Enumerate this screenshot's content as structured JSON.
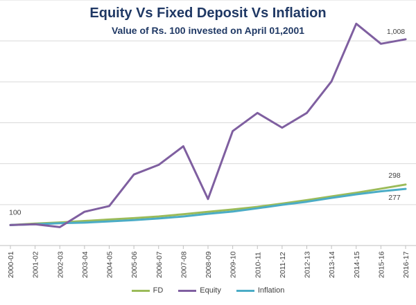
{
  "chart_data": {
    "type": "line",
    "title": "Equity Vs Fixed Deposit Vs Inflation",
    "subtitle": "Value of Rs.  100 invested on April 01,2001",
    "categories": [
      "2000-01",
      "2001-02",
      "2002-03",
      "2003-04",
      "2004-05",
      "2005-06",
      "2006-07",
      "2007-08",
      "2008-09",
      "2009-10",
      "2010-11",
      "2011-12",
      "2012-13",
      "2013-14",
      "2014-15",
      "2015-16",
      "2016-17"
    ],
    "series": [
      {
        "name": "FD",
        "color": "#9bbb59",
        "values": [
          100,
          107,
          113,
          120,
          127,
          134,
          142,
          153,
          165,
          176,
          189,
          205,
          222,
          240,
          258,
          278,
          298
        ]
      },
      {
        "name": "Equity",
        "color": "#7f5fa0",
        "values": [
          100,
          104,
          90,
          165,
          193,
          347,
          394,
          485,
          227,
          559,
          648,
          576,
          648,
          802,
          1084,
          986,
          1008
        ]
      },
      {
        "name": "Inflation",
        "color": "#4bacc6",
        "values": [
          100,
          104,
          109,
          112,
          118,
          124,
          132,
          142,
          155,
          166,
          182,
          199,
          214,
          233,
          250,
          265,
          277
        ]
      }
    ],
    "data_labels": [
      {
        "series": "Equity",
        "index": 0,
        "text": "100"
      },
      {
        "series": "Equity",
        "index": 16,
        "text": "1,008"
      },
      {
        "series": "FD",
        "index": 16,
        "text": "298"
      },
      {
        "series": "Inflation",
        "index": 16,
        "text": "277"
      }
    ],
    "ylim": [
      0,
      1200
    ],
    "y_gridlines": [
      200,
      400,
      600,
      800,
      1000,
      1200
    ],
    "grid": true,
    "legend_position": "bottom",
    "x_tick_rotation": -90
  }
}
